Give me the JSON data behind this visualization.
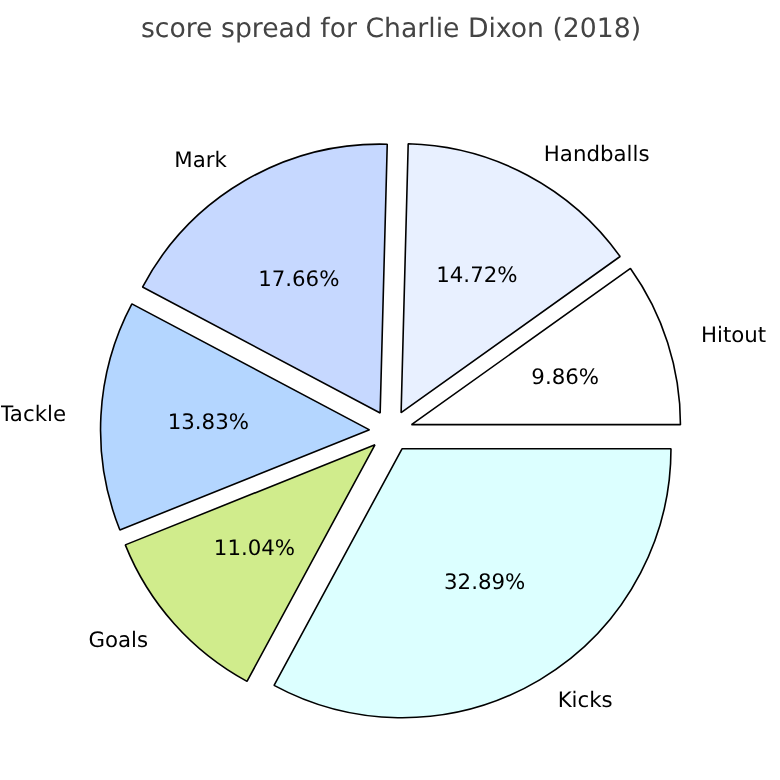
{
  "chart_data": {
    "type": "pie",
    "title": "score spread for Charlie Dixon (2018)",
    "categories": [
      "Hitout",
      "Handballs",
      "Mark",
      "Tackle",
      "Goals",
      "Kicks"
    ],
    "values": [
      9.86,
      14.72,
      17.66,
      13.83,
      11.04,
      32.89
    ],
    "value_labels": [
      "9.86%",
      "14.72%",
      "17.66%",
      "13.83%",
      "11.04%",
      "32.89%"
    ],
    "colors": [
      "#ffffff",
      "#e8f0ff",
      "#c6d8ff",
      "#b4d6ff",
      "#d0ec8c",
      "#dcffff"
    ]
  }
}
